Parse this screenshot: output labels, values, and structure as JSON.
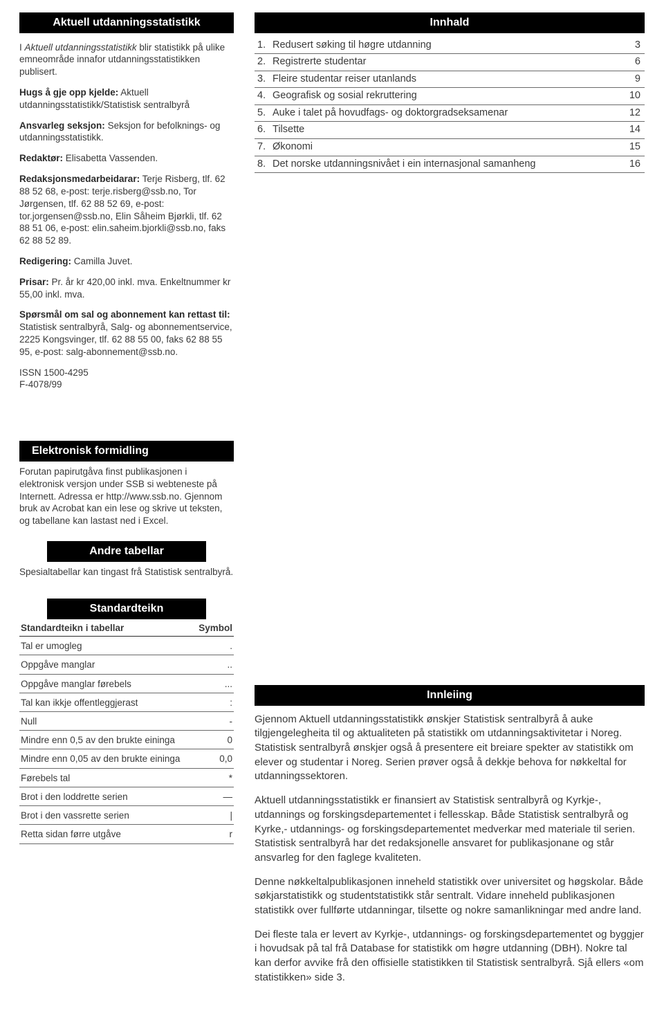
{
  "left": {
    "header1": "Aktuell utdanningsstatistikk",
    "p1_html": "I <em>Aktuell utdanningsstatistikk</em> blir statistikk på ulike emneområde innafor utdanningsstatistikken publisert.",
    "p2_html": "<b>Hugs å gje opp kjelde:</b> Aktuell utdanningsstatistikk/Statistisk sentralbyrå",
    "p3_html": "<b>Ansvarleg seksjon:</b> Seksjon for befolknings- og utdanningsstatistikk.",
    "p4_html": "<b>Redaktør:</b> Elisabetta Vassenden.",
    "p5_html": "<b>Redaksjonsmedarbeidarar:</b> Terje Risberg, tlf. 62 88 52 68, e-post: terje.risberg@ssb.no, Tor Jørgensen, tlf. 62 88 52 69, e-post: tor.jorgensen@ssb.no, Elin Såheim Bjørkli, tlf. 62 88 51 06, e-post: elin.saheim.bjorkli@ssb.no, faks 62 88 52 89.",
    "p6_html": "<b>Redigering:</b>  Camilla Juvet.",
    "p7_html": "<b>Prisar:</b> Pr. år kr 420,00 inkl. mva. Enkeltnummer kr 55,00 inkl. mva.",
    "p8_html": "<b>Spørsmål om sal og abonnement kan rettast til:</b> Statistisk sentralbyrå, Salg- og abonnementservice, 2225 Kongsvinger, tlf. 62 88 55 00, faks 62 88 55 95, e-post: salg-abonnement@ssb.no.",
    "p9_line1": "ISSN 1500-4295",
    "p9_line2": "F-4078/99",
    "header2": "Elektronisk  formidling",
    "p10": "Forutan papirutgåva finst publikasjonen  i elektronisk versjon under SSB si  webteneste på Internett. Adressa er http://www.ssb.no. Gjennom bruk av Acrobat kan ein lese og skrive ut teksten, og tabellane kan lastast ned i Excel.",
    "header3": "Andre tabellar",
    "p11": "Spesialtabellar kan tingast frå Statistisk sentralbyrå.",
    "header4": "Standardteikn",
    "std_header_label": "Standardteikn i tabellar",
    "std_header_sym": "Symbol",
    "std_rows": [
      {
        "label": "Tal er umogleg",
        "sym": "."
      },
      {
        "label": "Oppgåve manglar",
        "sym": ".."
      },
      {
        "label": "Oppgåve manglar førebels",
        "sym": "..."
      },
      {
        "label": "Tal kan ikkje offentleggjerast",
        "sym": ":"
      },
      {
        "label": "Null",
        "sym": "-"
      },
      {
        "label": "Mindre enn 0,5 av den brukte eininga",
        "sym": "0"
      },
      {
        "label": "Mindre enn 0,05 av den brukte eininga",
        "sym": "0,0"
      },
      {
        "label": "Førebels tal",
        "sym": "*"
      },
      {
        "label": "Brot i den loddrette serien",
        "sym": "—"
      },
      {
        "label": "Brot i den vassrette serien",
        "sym": "|"
      },
      {
        "label": "Retta sidan førre utgåve",
        "sym": "r"
      }
    ]
  },
  "right": {
    "header_toc": "Innhald",
    "toc": [
      {
        "n": "1.",
        "t": "Redusert søking til høgre utdanning",
        "p": "3"
      },
      {
        "n": "2.",
        "t": "Registrerte studentar",
        "p": "6"
      },
      {
        "n": "3.",
        "t": "Fleire studentar reiser utanlands",
        "p": "9"
      },
      {
        "n": "4.",
        "t": "Geografisk og sosial rekruttering",
        "p": "10"
      },
      {
        "n": "5.",
        "t": "Auke i talet på hovudfags- og doktorgradseksamenar",
        "p": "12"
      },
      {
        "n": "6.",
        "t": "Tilsette",
        "p": "14"
      },
      {
        "n": "7.",
        "t": "Økonomi",
        "p": "15"
      },
      {
        "n": "8.",
        "t": "Det norske utdanningsnivået  i ein internasjonal samanheng",
        "p": "16"
      }
    ],
    "header_intro": "Innleiing",
    "intro": [
      "Gjennom Aktuell utdanningsstatistikk ønskjer Statistisk sentralbyrå å auke tilgjengelegheita til og aktualiteten på statistikk om utdanningsaktivitetar i Noreg. Statistisk sentralbyrå ønskjer også å presentere eit breiare spekter av statistikk om elever og studentar i Noreg. Serien prøver også å dekkje behova for nøkkeltal for utdanningssektoren.",
      "Aktuell utdanningsstatistikk er finansiert av Statistisk sentralbyrå og Kyrkje-, utdannings og forskingsdepartementet i fellesskap. Både Statistisk sentralbyrå og Kyrke,- utdannings- og forskingsdepartementet medverkar med materiale til serien. Statistisk sentralbyrå har det redaksjonelle ansvaret for publikasjonane og står ansvarleg for den faglege kvaliteten.",
      "Denne nøkkeltalpublikasjonen inneheld statistikk over universitet og høgskolar. Både søkjarstatistikk og studentstatistikk står sentralt. Vidare inneheld publikasjonen statistikk over fullførte utdanningar, tilsette og nokre samanlikningar med andre land.",
      "Dei fleste tala er levert av Kyrkje-, utdannings- og forskingsdepartementet og byggjer i hovudsak på tal frå Database for statistikk om høgre utdanning (DBH). Nokre tal kan derfor avvike frå den offisielle statistikken til Statistisk sentralbyrå. Sjå ellers «om statistikken» side 3."
    ]
  }
}
